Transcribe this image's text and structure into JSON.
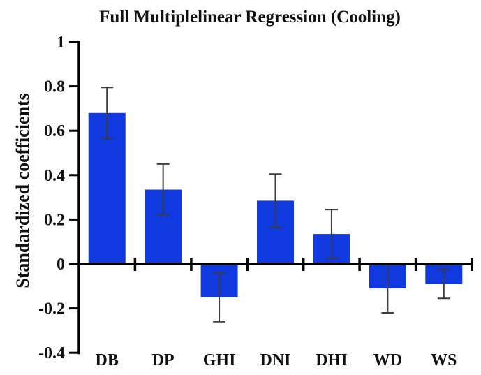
{
  "figure": {
    "background": "#ffffff"
  },
  "chart_data": {
    "type": "bar",
    "title": "Full Multiplelinear Regression (Cooling)",
    "ylabel": "Standardized coefficients",
    "xlabel": "",
    "categories": [
      "DB",
      "DP",
      "GHI",
      "DNI",
      "DHI",
      "WD",
      "WS"
    ],
    "values": [
      0.68,
      0.335,
      -0.15,
      0.285,
      0.135,
      -0.11,
      -0.09
    ],
    "errors": [
      0.115,
      0.115,
      0.11,
      0.12,
      0.11,
      0.11,
      0.065
    ],
    "error_tops": [
      0.795,
      0.45,
      -0.04,
      0.405,
      0.245,
      0.0,
      -0.025
    ],
    "error_bottoms": [
      0.565,
      0.22,
      -0.26,
      0.165,
      0.025,
      -0.22,
      -0.155
    ],
    "ylim": [
      -0.4,
      1.0
    ],
    "yticks": [
      1,
      0.8,
      0.6,
      0.4,
      0.2,
      0,
      -0.2,
      -0.4
    ],
    "ytick_labels": [
      "1",
      "0.8",
      "0.6",
      "0.4",
      "0.2",
      "0",
      "-0.2",
      "-0.4"
    ],
    "grid": false,
    "legend": "none",
    "bar_color": "#1039e0",
    "error_color": "#3d3d3d",
    "axis_color": "#000000"
  }
}
